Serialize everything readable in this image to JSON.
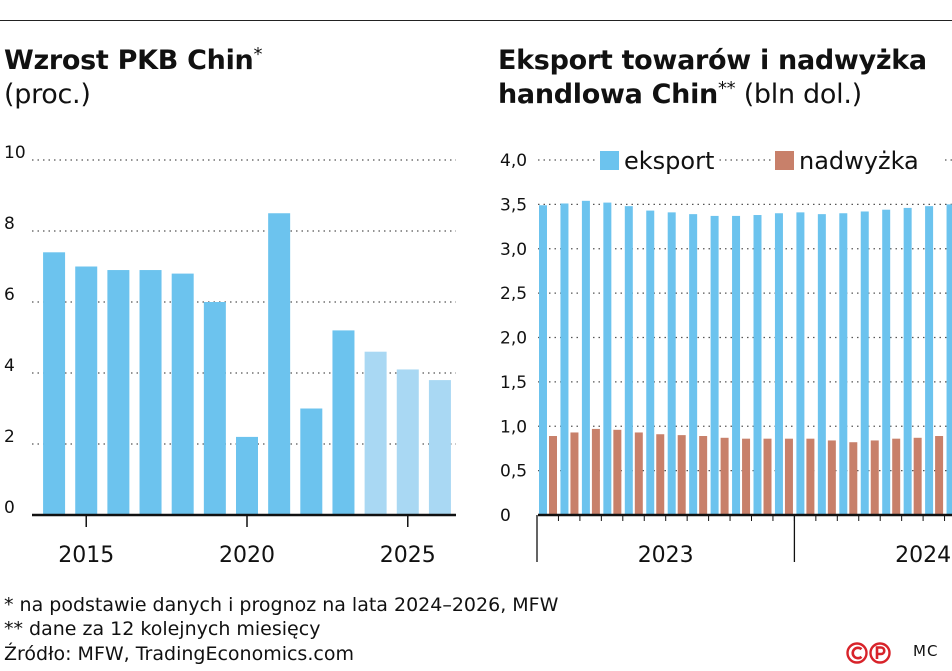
{
  "titles": {
    "left_bold": "Wzrost PKB Chin",
    "left_mark": "*",
    "left_unit": "(proc.)",
    "right_bold_1": "Eksport towarów i nadwyżka",
    "right_bold_2": "handlowa Chin",
    "right_mark": "**",
    "right_unit": "(bln dol.)"
  },
  "footnotes": {
    "note1_mark": "*",
    "note1": " na podstawie danych i prognoz na lata 2024–2026, MFW",
    "note2_mark": "**",
    "note2": " dane za 12 kolejnych miesięcy",
    "source": "Źródło: MFW, TradingEconomics.com"
  },
  "credit": "MC",
  "logo_text": "CP",
  "colors": {
    "actual": "#6cc3ee",
    "forecast": "#a9d8f3",
    "export": "#6cc3ee",
    "surplus": "#c8806a"
  },
  "chart_data": [
    {
      "type": "bar",
      "title": "Wzrost PKB Chin*",
      "ylabel": "(proc.)",
      "categories": [
        "2014",
        "2015",
        "2016",
        "2017",
        "2018",
        "2019",
        "2020",
        "2021",
        "2022",
        "2023",
        "2024",
        "2025",
        "2026"
      ],
      "values": [
        7.4,
        7.0,
        6.9,
        6.9,
        6.8,
        6.0,
        2.2,
        8.5,
        3.0,
        5.2,
        4.6,
        4.1,
        3.8
      ],
      "forecast_from": "2024",
      "yticks": [
        0,
        2,
        4,
        6,
        8,
        10
      ],
      "ytick_labels": [
        "0",
        "2",
        "4",
        "6",
        "8",
        "10"
      ],
      "xtick_labels": [
        "2015",
        "2020",
        "2025"
      ],
      "ylim": [
        0,
        10
      ]
    },
    {
      "type": "bar",
      "title": "Eksport towarów i nadwyżka handlowa Chin**",
      "ylabel": "(bln dol.)",
      "categories": [
        "2023-01",
        "2023-02",
        "2023-03",
        "2023-04",
        "2023-05",
        "2023-06",
        "2023-07",
        "2023-08",
        "2023-09",
        "2023-10",
        "2023-11",
        "2023-12",
        "2024-01",
        "2024-02",
        "2024-03",
        "2024-04",
        "2024-05",
        "2024-06",
        "2024-07",
        "2024-08"
      ],
      "series": [
        {
          "name": "eksport",
          "values": [
            3.49,
            3.51,
            3.54,
            3.52,
            3.48,
            3.43,
            3.41,
            3.39,
            3.37,
            3.37,
            3.38,
            3.4,
            3.41,
            3.39,
            3.4,
            3.42,
            3.44,
            3.46,
            3.48,
            3.5
          ]
        },
        {
          "name": "nadwyżka",
          "values": [
            0.89,
            0.93,
            0.97,
            0.96,
            0.93,
            0.91,
            0.9,
            0.89,
            0.87,
            0.86,
            0.86,
            0.86,
            0.86,
            0.84,
            0.82,
            0.84,
            0.86,
            0.87,
            0.89,
            0.9
          ]
        }
      ],
      "yticks": [
        0,
        0.5,
        1.0,
        1.5,
        2.0,
        2.5,
        3.0,
        3.5,
        4.0
      ],
      "ytick_labels": [
        "0",
        "0,5",
        "1,0",
        "1,5",
        "2,0",
        "2,5",
        "3,0",
        "3,5",
        "4,0"
      ],
      "xtick_labels": [
        "2023",
        "2024"
      ],
      "legend": [
        "eksport",
        "nadwyżka"
      ],
      "legend_position": "top",
      "ylim": [
        0,
        4.0
      ]
    }
  ]
}
